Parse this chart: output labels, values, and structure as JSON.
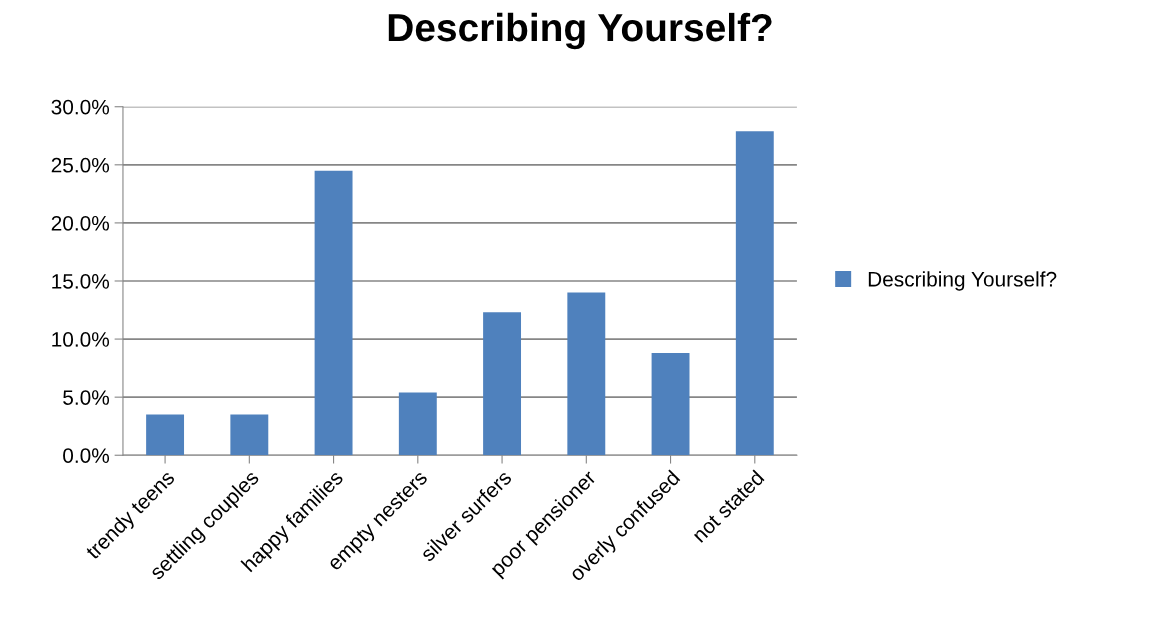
{
  "chart_data": {
    "type": "bar",
    "title": "Describing Yourself?",
    "categories": [
      "trendy teens",
      "settling couples",
      "happy families",
      "empty nesters",
      "silver surfers",
      "poor pensioner",
      "overly confused",
      "not stated"
    ],
    "series": [
      {
        "name": "Describing Yourself?",
        "color": "#4f81bd",
        "values": [
          3.5,
          3.5,
          24.5,
          5.4,
          12.3,
          14.0,
          8.8,
          27.9
        ]
      }
    ],
    "ylim": [
      0,
      30
    ],
    "yticks": [
      {
        "value": 0,
        "label": "0.0%"
      },
      {
        "value": 5,
        "label": "5.0%"
      },
      {
        "value": 10,
        "label": "10.0%"
      },
      {
        "value": 15,
        "label": "15.0%"
      },
      {
        "value": 20,
        "label": "20.0%"
      },
      {
        "value": 25,
        "label": "25.0%"
      },
      {
        "value": 30,
        "label": "30.0%"
      }
    ],
    "grid": "y",
    "legend": "right"
  }
}
